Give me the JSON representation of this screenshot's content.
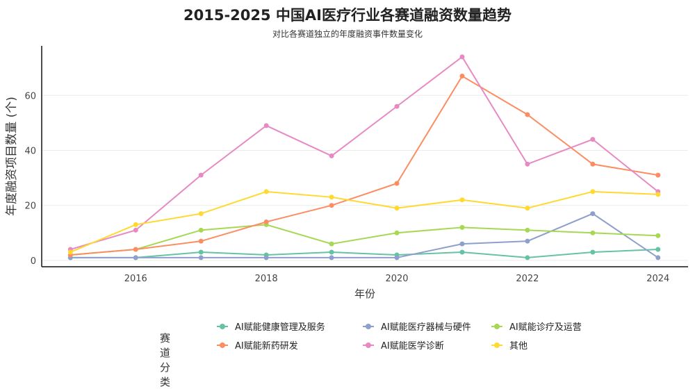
{
  "chart_data": {
    "type": "line",
    "title": "2015-2025 中国AI医疗行业各赛道融资数量趋势",
    "subtitle": "对比各赛道独立的年度融资事件数量变化",
    "xlabel": "年份",
    "ylabel": "年度融资项目数量 (个)",
    "x": [
      2015,
      2016,
      2017,
      2018,
      2019,
      2020,
      2021,
      2022,
      2023,
      2024
    ],
    "xticks": [
      "2016",
      "2018",
      "2020",
      "2022",
      "2024"
    ],
    "yticks": [
      "0",
      "20",
      "40",
      "60"
    ],
    "xlim": [
      2014.56,
      2024.46
    ],
    "ylim": [
      -2.3,
      78
    ],
    "grid": "horizontal",
    "legend_title": "赛道分类",
    "legend_position": "bottom",
    "series": [
      {
        "name": "AI赋能健康管理及服务",
        "color": "#66c2a5",
        "values": [
          1,
          1,
          3,
          2,
          3,
          2,
          3,
          1,
          3,
          4
        ]
      },
      {
        "name": "AI赋能医疗器械与硬件",
        "color": "#8da0cb",
        "values": [
          1,
          1,
          1,
          1,
          1,
          1,
          6,
          7,
          17,
          1
        ]
      },
      {
        "name": "AI赋能诊疗及运营",
        "color": "#a6d854",
        "values": [
          2,
          4,
          11,
          13,
          6,
          10,
          12,
          11,
          10,
          9
        ]
      },
      {
        "name": "AI赋能新药研发",
        "color": "#fc8d62",
        "values": [
          2,
          4,
          7,
          14,
          20,
          28,
          67,
          53,
          35,
          31
        ]
      },
      {
        "name": "AI赋能医学诊断",
        "color": "#e78ac3",
        "values": [
          4,
          11,
          31,
          49,
          38,
          56,
          74,
          35,
          44,
          25
        ]
      },
      {
        "name": "其他",
        "color": "#ffd92f",
        "values": [
          3,
          13,
          17,
          25,
          23,
          19,
          22,
          19,
          25,
          24
        ]
      }
    ]
  }
}
